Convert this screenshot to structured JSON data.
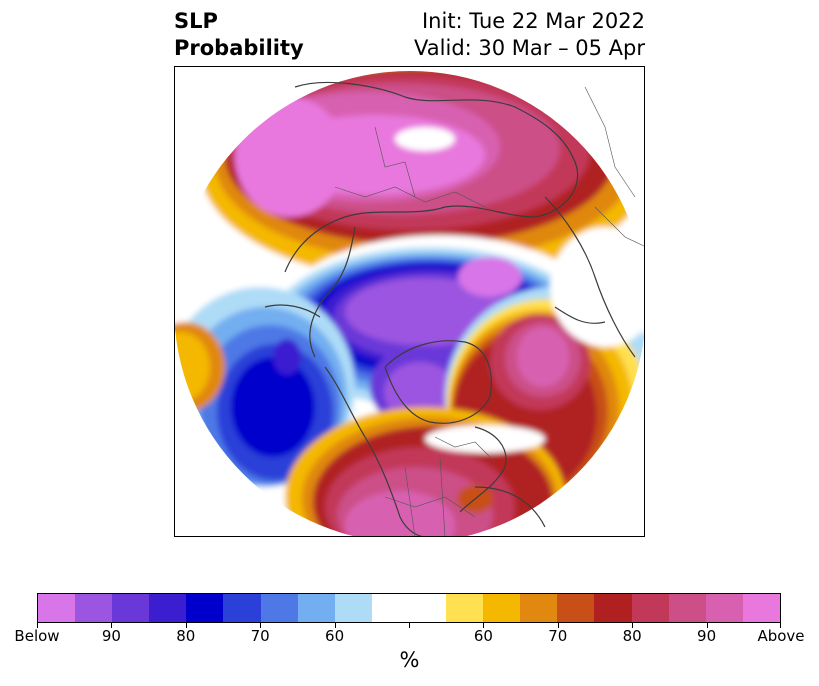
{
  "title": {
    "left_line1": "SLP",
    "left_line2": "Probability",
    "right_line1": "Init: Tue 22 Mar 2022",
    "right_line2": "Valid: 30 Mar – 05 Apr"
  },
  "colorbar": {
    "colors": [
      "#d875e8",
      "#9b55e0",
      "#6a38d8",
      "#3a1ed0",
      "#0000cc",
      "#2a40d8",
      "#4e78e6",
      "#72aef0",
      "#aedcf7",
      "#ffffff",
      "#ffffff",
      "#ffe050",
      "#f4b800",
      "#e08810",
      "#c85018",
      "#b02020",
      "#c23858",
      "#cc4f88",
      "#d860b0",
      "#e878de"
    ],
    "labels": [
      "Below",
      "90",
      "80",
      "70",
      "60",
      "",
      "60",
      "70",
      "80",
      "90",
      "Above"
    ],
    "unit": "%"
  },
  "map": {
    "projection": "north-polar-stereographic",
    "features": [
      {
        "name": "europe-siberia-above-high",
        "category": "Above",
        "peak": "90+"
      },
      {
        "name": "arctic-below-low",
        "category": "Below",
        "peak": "90+"
      },
      {
        "name": "canada-hudson-below-low",
        "category": "Below",
        "peak": "90+"
      },
      {
        "name": "north-pacific-below-low",
        "category": "Below",
        "peak": "80"
      },
      {
        "name": "north-atlantic-above-high",
        "category": "Above",
        "peak": "90"
      },
      {
        "name": "united-states-above-high",
        "category": "Above",
        "peak": "90"
      }
    ]
  }
}
